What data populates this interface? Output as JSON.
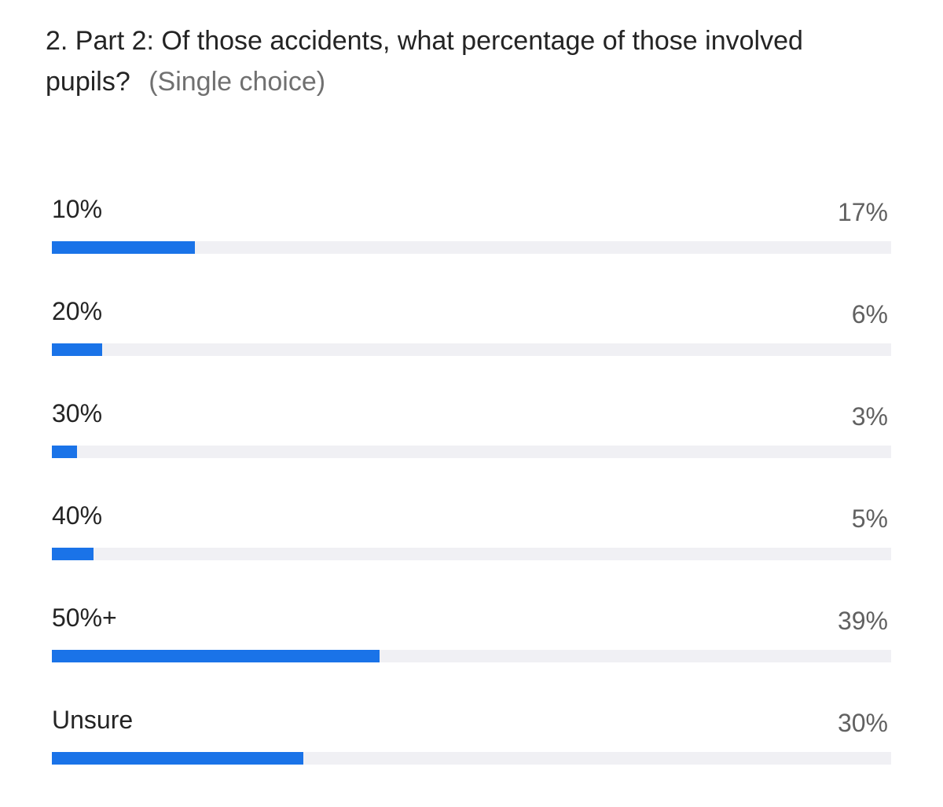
{
  "question": {
    "title": "2. Part 2: Of those accidents, what percentage of those involved pupils?",
    "hint": "(Single choice)"
  },
  "colors": {
    "bar_fill": "#1a73e8",
    "bar_track": "#f0f0f4"
  },
  "chart_data": {
    "type": "bar",
    "orientation": "horizontal",
    "categories": [
      "10%",
      "20%",
      "30%",
      "40%",
      "50%+",
      "Unsure"
    ],
    "values": [
      17,
      6,
      3,
      5,
      39,
      30
    ],
    "value_labels": [
      "17%",
      "6%",
      "3%",
      "5%",
      "39%",
      "30%"
    ],
    "xlim": [
      0,
      100
    ]
  }
}
